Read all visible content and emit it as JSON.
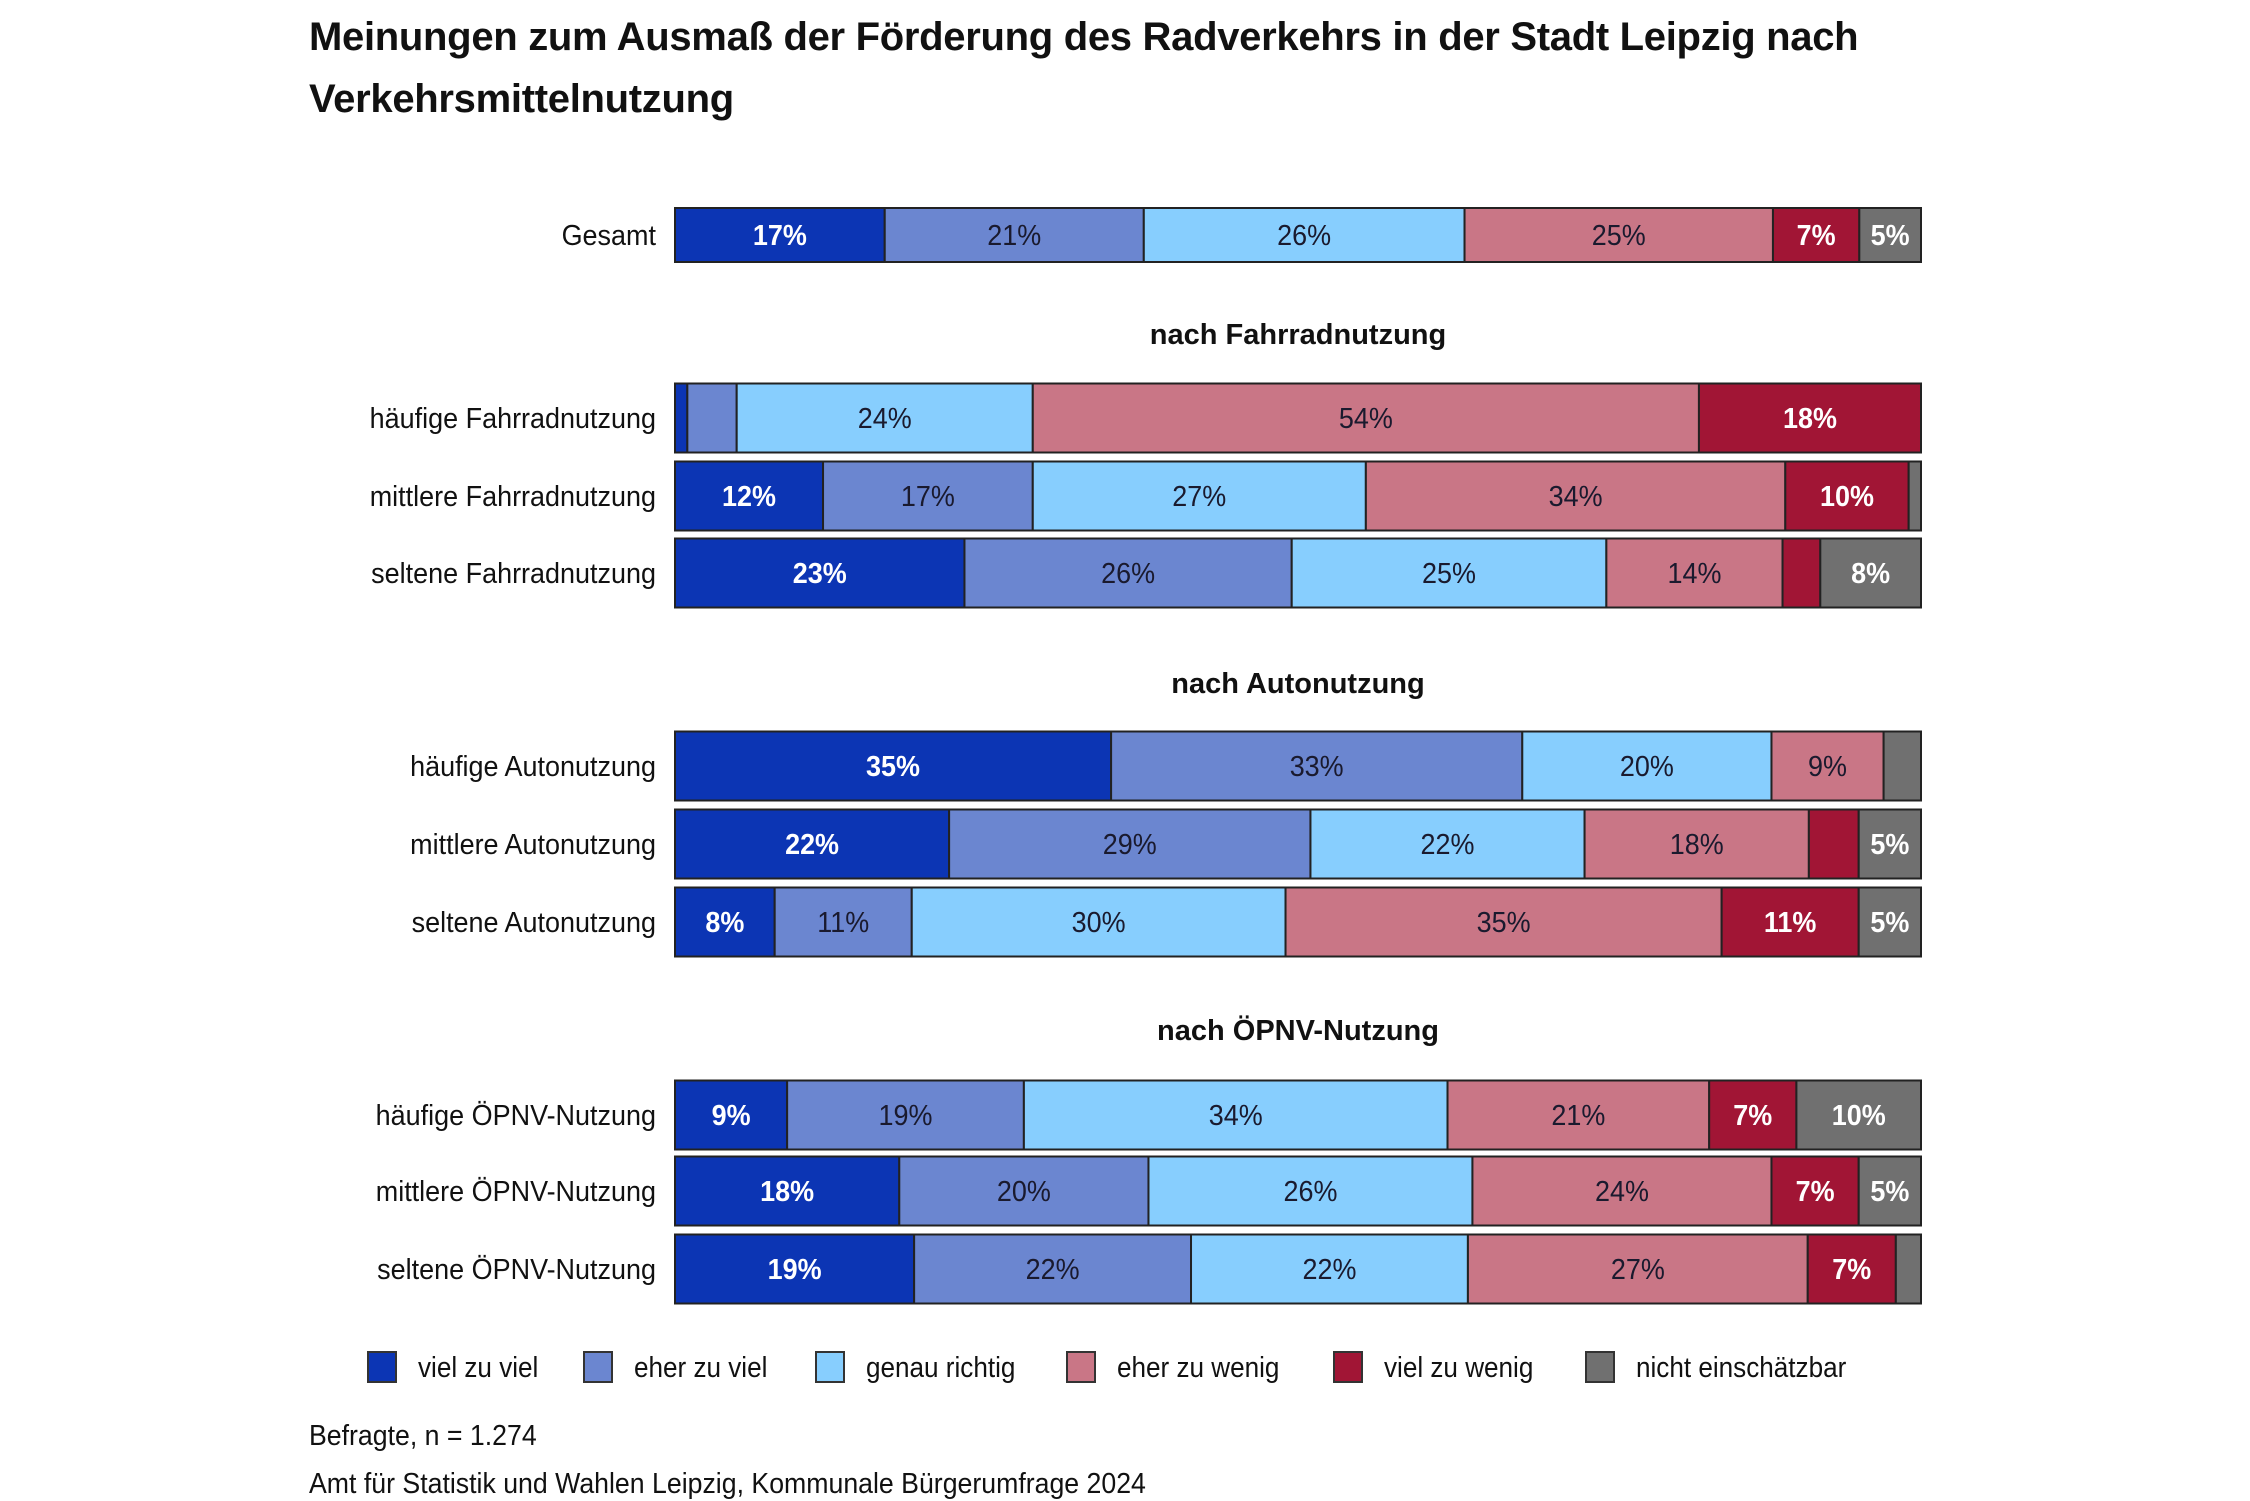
{
  "title": "Meinungen zum Ausmaß der Förderung des Radverkehrs in der Stadt Leipzig nach Verkehrsmittelnutzung",
  "footnote": "Befragte, n = 1.274",
  "source": "Amt für Statistik und Wahlen Leipzig, Kommunale Bürgerumfrage 2024",
  "chart_data": {
    "type": "bar",
    "orientation": "horizontal",
    "stacked": "100%",
    "unit": "%",
    "legend_position": "bottom",
    "grid": false,
    "xlim": [
      0,
      100
    ],
    "series_names": [
      "viel zu viel",
      "eher zu viel",
      "genau richtig",
      "eher zu wenig",
      "viel zu wenig",
      "nicht einschätzbar"
    ],
    "colors": [
      "#0c35b4",
      "#6b86d0",
      "#87cefe",
      "#c97686",
      "#a11535",
      "#707070"
    ],
    "groups": [
      {
        "heading": "",
        "rows": [
          {
            "label": "Gesamt",
            "values": [
              17,
              21,
              26,
              25,
              7,
              5
            ]
          }
        ]
      },
      {
        "heading": "nach Fahrradnutzung",
        "rows": [
          {
            "label": "häufige Fahrradnutzung",
            "values": [
              1,
              4,
              24,
              54,
              18,
              0
            ]
          },
          {
            "label": "mittlere Fahrradnutzung",
            "values": [
              12,
              17,
              27,
              34,
              10,
              1
            ]
          },
          {
            "label": "seltene Fahrradnutzung",
            "values": [
              23,
              26,
              25,
              14,
              3,
              8
            ]
          }
        ]
      },
      {
        "heading": "nach Autonutzung",
        "rows": [
          {
            "label": "häufige Autonutzung",
            "values": [
              35,
              33,
              20,
              9,
              0,
              3
            ]
          },
          {
            "label": "mittlere Autonutzung",
            "values": [
              22,
              29,
              22,
              18,
              4,
              5
            ]
          },
          {
            "label": "seltene Autonutzung",
            "values": [
              8,
              11,
              30,
              35,
              11,
              5
            ]
          }
        ]
      },
      {
        "heading": "nach ÖPNV-Nutzung",
        "rows": [
          {
            "label": "häufige ÖPNV-Nutzung",
            "values": [
              9,
              19,
              34,
              21,
              7,
              10
            ]
          },
          {
            "label": "mittlere ÖPNV-Nutzung",
            "values": [
              18,
              20,
              26,
              24,
              7,
              5
            ]
          },
          {
            "label": "seltene ÖPNV-Nutzung",
            "values": [
              19,
              22,
              22,
              27,
              7,
              2
            ]
          }
        ]
      }
    ]
  }
}
